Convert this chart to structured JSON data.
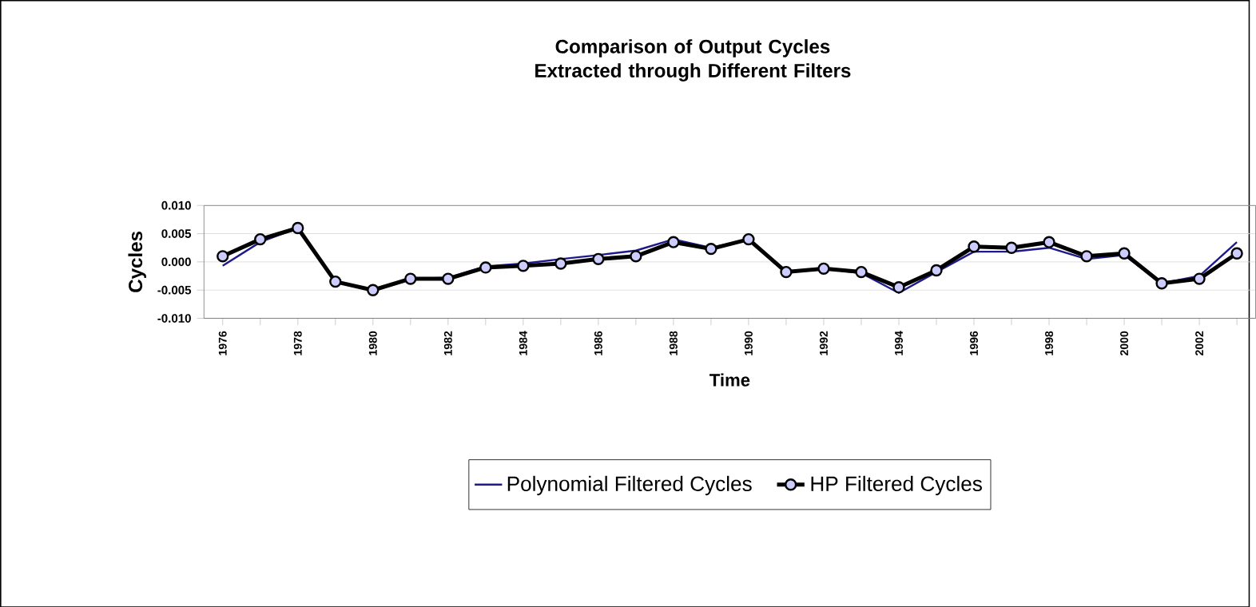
{
  "chart_data": {
    "type": "line",
    "title": "Comparison of Output Cycles\nExtracted through Different Filters",
    "xlabel": "Time",
    "ylabel": "Cycles",
    "categories": [
      "1976",
      null,
      "1978",
      null,
      "1980",
      null,
      "1982",
      null,
      "1984",
      null,
      "1986",
      null,
      "1988",
      null,
      "1990",
      null,
      "1992",
      null,
      "1994",
      null,
      "1996",
      null,
      "1998",
      null,
      "2000",
      null,
      "2002",
      null
    ],
    "series": [
      {
        "name": "Polynomial Filtered Cycles",
        "color": "#1f1a8c",
        "marker": "none",
        "values": [
          -0.0007,
          0.0035,
          0.006,
          -0.0035,
          -0.005,
          -0.003,
          -0.0028,
          -0.0008,
          -0.0003,
          0.0005,
          0.0012,
          0.002,
          0.004,
          0.0025,
          0.004,
          -0.0018,
          -0.0012,
          -0.002,
          -0.0055,
          -0.0018,
          0.0018,
          0.0018,
          0.0025,
          0.0005,
          0.0012,
          -0.0038,
          -0.0025,
          0.0035
        ]
      },
      {
        "name": "HP Filtered Cycles",
        "color": "#000000",
        "marker": "circle",
        "values": [
          0.001,
          0.004,
          0.006,
          -0.0035,
          -0.005,
          -0.003,
          -0.003,
          -0.001,
          -0.0007,
          -0.0003,
          0.0005,
          0.001,
          0.0035,
          0.0023,
          0.004,
          -0.0018,
          -0.0012,
          -0.0018,
          -0.0045,
          -0.0015,
          0.0027,
          0.0025,
          0.0035,
          0.001,
          0.0015,
          -0.0038,
          -0.003,
          0.0015
        ]
      }
    ],
    "ylim": [
      -0.01,
      0.01
    ],
    "yticks": [
      {
        "value": -0.01,
        "label": "-0.010"
      },
      {
        "value": -0.005,
        "label": "-0.005"
      },
      {
        "value": 0,
        "label": "0.000"
      },
      {
        "value": 0.005,
        "label": "0.005"
      },
      {
        "value": 0.01,
        "label": "0.010"
      }
    ],
    "grid": "y",
    "legend": "bottom"
  }
}
